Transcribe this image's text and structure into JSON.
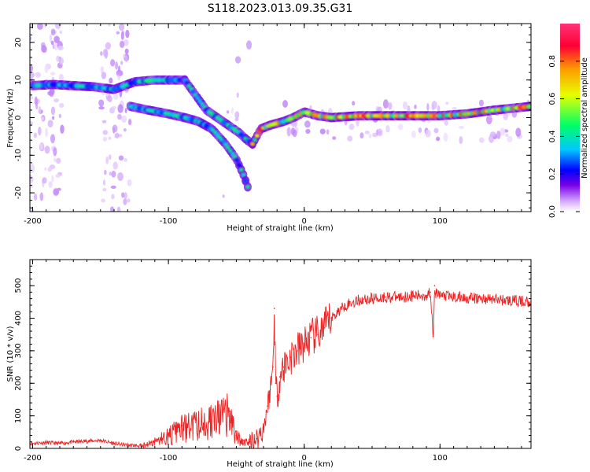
{
  "figure_title": "S118.2023.013.09.35.G31",
  "chart_data": [
    {
      "type": "heatmap",
      "xlabel": "Height of straight line (km)",
      "ylabel": "Frequency (Hz)",
      "xlim": [
        -202,
        167
      ],
      "ylim": [
        -25,
        25
      ],
      "x_ticks": [
        -200,
        -100,
        0,
        100
      ],
      "y_ticks": [
        20,
        10,
        0,
        -10,
        -20
      ],
      "colorbar": {
        "label": "Normalized spectral amplitude",
        "range": [
          0,
          1
        ],
        "ticks": [
          0.0,
          0.2,
          0.4,
          0.6,
          0.8
        ],
        "colormap": [
          "#ffffff",
          "#d9b3ff",
          "#7a00e6",
          "#0000ff",
          "#00c8ff",
          "#00ff66",
          "#e6ff00",
          "#ff9900",
          "#ff0033",
          "#ff3377"
        ]
      },
      "ridges": [
        {
          "x": [
            -200,
            -185,
            -170,
            -155,
            -140,
            -125,
            -110,
            -95,
            -88
          ],
          "y": [
            8.5,
            8.8,
            8.5,
            8.2,
            7.5,
            9.5,
            10,
            10,
            10
          ]
        },
        {
          "x": [
            -88,
            -80,
            -72,
            -64,
            -56,
            -48,
            -42,
            -38
          ],
          "y": [
            10,
            6,
            2,
            0,
            -2,
            -4,
            -6,
            -7
          ]
        },
        {
          "x": [
            -128,
            -115,
            -100,
            -88,
            -78,
            -68,
            -58,
            -50,
            -45,
            -41
          ],
          "y": [
            3,
            2,
            1,
            0,
            -1,
            -3,
            -7,
            -11,
            -15,
            -19
          ]
        },
        {
          "x": [
            -38,
            -32,
            -25,
            -15,
            -8,
            0,
            10,
            20,
            40,
            60,
            80,
            100,
            120,
            140,
            167
          ],
          "y": [
            -7,
            -3,
            -2,
            -1,
            0,
            1.5,
            0.5,
            0,
            0.5,
            0.5,
            0.5,
            0.5,
            1,
            2,
            3
          ]
        }
      ]
    },
    {
      "type": "line",
      "xlabel": "Height of straight line (km)",
      "ylabel": "SNR (10 * v/v)",
      "xlim": [
        -202,
        167
      ],
      "ylim": [
        0,
        580
      ],
      "x_ticks": [
        -200,
        -100,
        0,
        100
      ],
      "y_ticks": [
        0,
        100,
        200,
        300,
        400,
        500
      ],
      "color": "#ee2222",
      "series": [
        {
          "x": [
            -202,
            -190,
            -180,
            -170,
            -160,
            -150,
            -140,
            -130,
            -120,
            -110,
            -100,
            -90,
            -80,
            -70,
            -60,
            -55,
            -50,
            -45,
            -40,
            -35,
            -30,
            -27,
            -25,
            -23,
            -22,
            -21,
            -20,
            -18,
            -15,
            -10,
            -5,
            0,
            5,
            10,
            15,
            20,
            25,
            30,
            40,
            50,
            60,
            70,
            80,
            90,
            93,
            95,
            96,
            97,
            100,
            110,
            120,
            130,
            140,
            150,
            160,
            167
          ],
          "y": [
            15,
            18,
            15,
            20,
            22,
            25,
            15,
            10,
            8,
            25,
            45,
            70,
            80,
            95,
            110,
            115,
            40,
            25,
            20,
            30,
            60,
            130,
            180,
            250,
            430,
            200,
            160,
            220,
            250,
            280,
            300,
            320,
            340,
            350,
            370,
            400,
            420,
            440,
            455,
            460,
            465,
            465,
            468,
            470,
            480,
            345,
            500,
            475,
            470,
            465,
            462,
            460,
            458,
            455,
            452,
            450
          ]
        }
      ]
    }
  ]
}
